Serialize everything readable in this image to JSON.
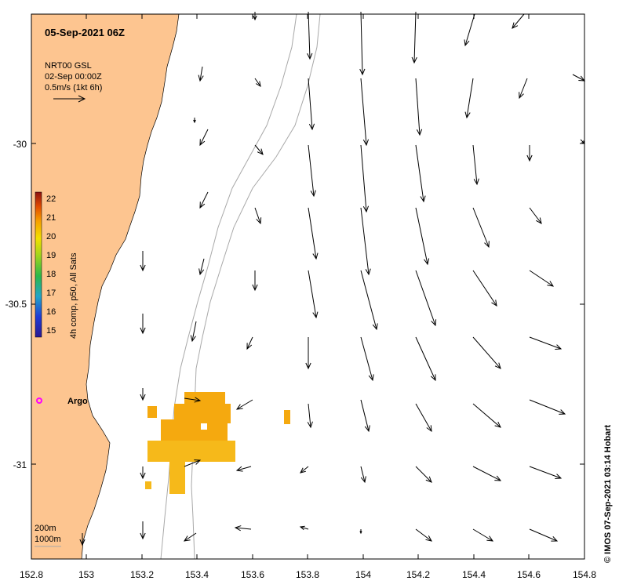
{
  "header": {
    "title": "05-Sep-2021 06Z",
    "source": "NRT00 GSL",
    "source_time": "02-Sep 00:00Z",
    "scale_label": "0.5m/s (1kt 6h)"
  },
  "credit": "© IMOS 07-Sep-2021 03:14 Hobart",
  "colorbar": {
    "label": "4h comp, p50, All Sats",
    "ticks": [
      "22",
      "21",
      "20",
      "19",
      "18",
      "17",
      "16",
      "15"
    ]
  },
  "axes": {
    "x_ticks": [
      "152.8",
      "153",
      "153.2",
      "153.4",
      "153.6",
      "153.8",
      "154",
      "154.2",
      "154.4",
      "154.6",
      "154.8"
    ],
    "y_ticks": [
      "-30",
      "-30.5",
      "-31"
    ],
    "xlim": [
      152.8,
      154.8
    ],
    "ylim": [
      -31.3,
      -29.6
    ]
  },
  "argo": {
    "label": "Argo",
    "lon": 152.83,
    "lat": -30.79,
    "color": "#ff00ff"
  },
  "isobaths": {
    "shallow": "200m",
    "deep": "1000m"
  },
  "colors": {
    "land": "#fdc590",
    "sst": "#f5a90f",
    "sst_light": "#f6b91a",
    "isobath": "#a8a8a8"
  }
}
